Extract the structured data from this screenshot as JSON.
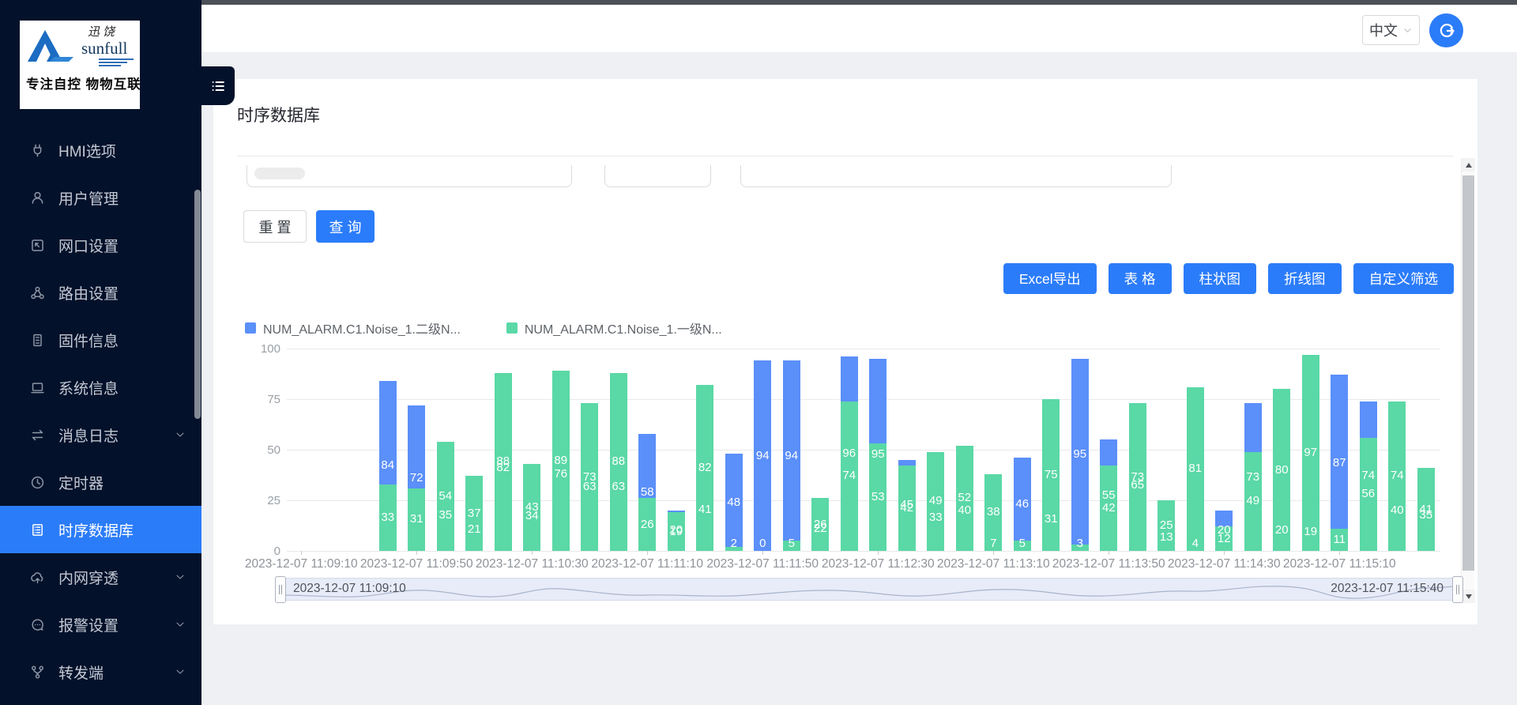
{
  "header": {
    "language": "中文"
  },
  "sidebar": {
    "logo": {
      "brand_cn": "迅饶",
      "brand_en": "sunfull",
      "tagline": "专注自控 物物互联"
    },
    "items": [
      {
        "key": "hmi-options",
        "label": "HMI选项",
        "icon": "plug-icon",
        "expandable": false,
        "active": false
      },
      {
        "key": "user-management",
        "label": "用户管理",
        "icon": "user-icon",
        "expandable": false,
        "active": false
      },
      {
        "key": "port-settings",
        "label": "网口设置",
        "icon": "port-icon",
        "expandable": false,
        "active": false
      },
      {
        "key": "route-settings",
        "label": "路由设置",
        "icon": "route-icon",
        "expandable": false,
        "active": false
      },
      {
        "key": "firmware-info",
        "label": "固件信息",
        "icon": "firmware-icon",
        "expandable": false,
        "active": false
      },
      {
        "key": "system-info",
        "label": "系统信息",
        "icon": "system-icon",
        "expandable": false,
        "active": false
      },
      {
        "key": "message-log",
        "label": "消息日志",
        "icon": "log-icon",
        "expandable": true,
        "active": false
      },
      {
        "key": "timer",
        "label": "定时器",
        "icon": "timer-icon",
        "expandable": false,
        "active": false
      },
      {
        "key": "timeseries-db",
        "label": "时序数据库",
        "icon": "database-icon",
        "expandable": false,
        "active": true
      },
      {
        "key": "nat-traversal",
        "label": "内网穿透",
        "icon": "nat-icon",
        "expandable": true,
        "active": false
      },
      {
        "key": "alarm-settings",
        "label": "报警设置",
        "icon": "alarm-icon",
        "expandable": true,
        "active": false
      },
      {
        "key": "forwarder",
        "label": "转发端",
        "icon": "forward-icon",
        "expandable": true,
        "active": false
      }
    ]
  },
  "page": {
    "title": "时序数据库"
  },
  "toolbar": {
    "reset": "重 置",
    "query": "查 询"
  },
  "actions": [
    {
      "key": "excel-export",
      "label": "Excel导出"
    },
    {
      "key": "table-view",
      "label": "表 格"
    },
    {
      "key": "bar-chart",
      "label": "柱状图"
    },
    {
      "key": "line-chart",
      "label": "折线图"
    },
    {
      "key": "custom-filter",
      "label": "自定义筛选"
    }
  ],
  "chart_data": {
    "type": "bar",
    "title": "",
    "ylim": [
      0,
      100
    ],
    "yticks": [
      0,
      25,
      50,
      75,
      100
    ],
    "grid": true,
    "legend_position": "top-left",
    "x_start": "2023-12-07 11:09:10",
    "x_end": "2023-12-07 11:15:40",
    "x_interval_seconds": 10,
    "total_slots": 40,
    "bars_start_slot": 3,
    "first_bar_time": "2023-12-07 11:09:40",
    "xtick_labels": [
      "2023-12-07 11:09:10",
      "2023-12-07 11:09:50",
      "2023-12-07 11:10:30",
      "2023-12-07 11:11:10",
      "2023-12-07 11:11:50",
      "2023-12-07 11:12:30",
      "2023-12-07 11:13:10",
      "2023-12-07 11:13:50",
      "2023-12-07 11:14:30",
      "2023-12-07 11:15:10"
    ],
    "xtick_slots": [
      0,
      4,
      8,
      12,
      16,
      20,
      24,
      28,
      32,
      36
    ],
    "series": [
      {
        "name": "NUM_ALARM.C1.Noise_1.二级N...",
        "color": "#5B8FF9",
        "values": [
          84,
          72,
          35,
          21,
          82,
          34,
          76,
          63,
          63,
          58,
          20,
          41,
          48,
          94,
          94,
          22,
          96,
          95,
          45,
          33,
          40,
          7,
          46,
          31,
          95,
          55,
          65,
          13,
          4,
          20,
          73,
          20,
          19,
          87,
          74,
          40,
          35
        ]
      },
      {
        "name": "NUM_ALARM.C1.Noise_1.一级N...",
        "color": "#5AD8A6",
        "values": [
          33,
          31,
          54,
          37,
          88,
          43,
          89,
          73,
          88,
          26,
          19,
          82,
          2,
          0,
          5,
          26,
          74,
          53,
          42,
          49,
          52,
          38,
          5,
          75,
          3,
          42,
          73,
          25,
          81,
          12,
          49,
          80,
          97,
          11,
          56,
          74,
          41
        ]
      }
    ],
    "datazoom": {
      "start_label": "2023-12-07 11:09:10",
      "end_label": "2023-12-07 11:15:40"
    }
  }
}
